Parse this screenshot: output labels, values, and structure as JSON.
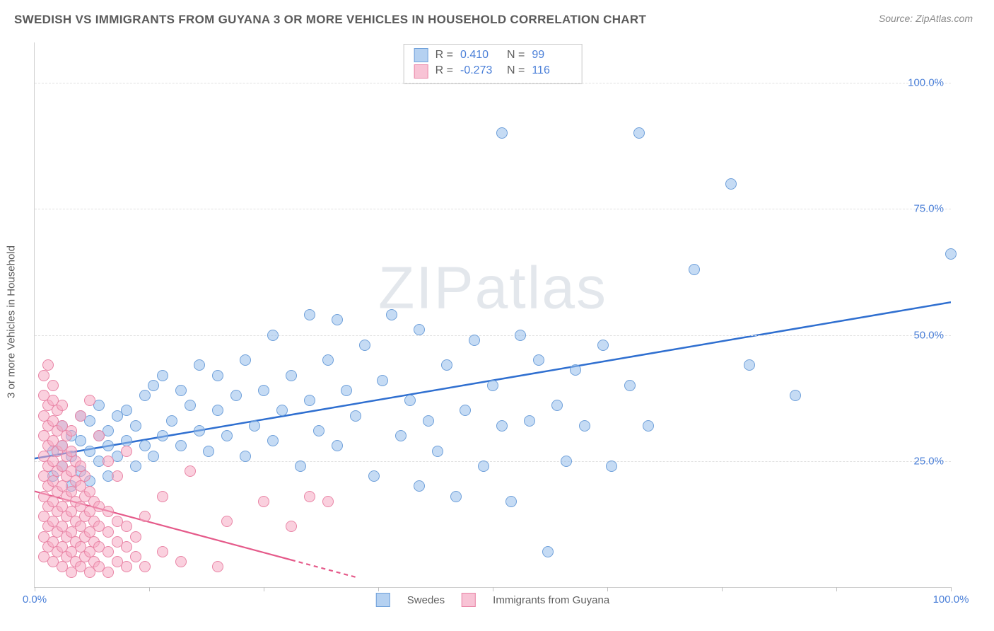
{
  "title": "SWEDISH VS IMMIGRANTS FROM GUYANA 3 OR MORE VEHICLES IN HOUSEHOLD CORRELATION CHART",
  "source": "Source: ZipAtlas.com",
  "y_axis_label": "3 or more Vehicles in Household",
  "watermark": "ZIPatlas",
  "chart": {
    "type": "scatter",
    "xlim": [
      0,
      100
    ],
    "ylim": [
      0,
      108
    ],
    "x_ticks": [
      0,
      12.5,
      25,
      37.5,
      50,
      62.5,
      75,
      87.5,
      100
    ],
    "x_tick_labels": {
      "0": "0.0%",
      "100": "100.0%"
    },
    "y_ticks": [
      25,
      50,
      75,
      100
    ],
    "y_tick_labels": {
      "25": "25.0%",
      "50": "50.0%",
      "75": "75.0%",
      "100": "100.0%"
    },
    "grid_color": "#e0e0e0",
    "background_color": "#ffffff",
    "point_radius": 8,
    "series": [
      {
        "name": "Swedes",
        "legend_label": "Swedes",
        "fill": "rgba(150,190,235,0.55)",
        "stroke": "#6fa0da",
        "R": "0.410",
        "N": "99",
        "trend": {
          "x1": 0,
          "y1": 25.5,
          "x2": 100,
          "y2": 56.5,
          "color": "#2f6fd0",
          "width": 2.5
        },
        "points": [
          [
            2,
            22
          ],
          [
            2,
            27
          ],
          [
            3,
            24
          ],
          [
            3,
            28
          ],
          [
            3,
            32
          ],
          [
            4,
            20
          ],
          [
            4,
            26
          ],
          [
            4,
            30
          ],
          [
            5,
            23
          ],
          [
            5,
            29
          ],
          [
            5,
            34
          ],
          [
            6,
            21
          ],
          [
            6,
            27
          ],
          [
            6,
            33
          ],
          [
            7,
            25
          ],
          [
            7,
            30
          ],
          [
            7,
            36
          ],
          [
            8,
            22
          ],
          [
            8,
            28
          ],
          [
            8,
            31
          ],
          [
            9,
            26
          ],
          [
            9,
            34
          ],
          [
            10,
            29
          ],
          [
            10,
            35
          ],
          [
            11,
            24
          ],
          [
            11,
            32
          ],
          [
            12,
            28
          ],
          [
            12,
            38
          ],
          [
            13,
            26
          ],
          [
            13,
            40
          ],
          [
            14,
            30
          ],
          [
            14,
            42
          ],
          [
            15,
            33
          ],
          [
            16,
            28
          ],
          [
            16,
            39
          ],
          [
            17,
            36
          ],
          [
            18,
            31
          ],
          [
            18,
            44
          ],
          [
            19,
            27
          ],
          [
            20,
            35
          ],
          [
            20,
            42
          ],
          [
            21,
            30
          ],
          [
            22,
            38
          ],
          [
            23,
            26
          ],
          [
            23,
            45
          ],
          [
            24,
            32
          ],
          [
            25,
            39
          ],
          [
            26,
            29
          ],
          [
            26,
            50
          ],
          [
            27,
            35
          ],
          [
            28,
            42
          ],
          [
            29,
            24
          ],
          [
            30,
            37
          ],
          [
            30,
            54
          ],
          [
            31,
            31
          ],
          [
            32,
            45
          ],
          [
            33,
            28
          ],
          [
            33,
            53
          ],
          [
            34,
            39
          ],
          [
            35,
            34
          ],
          [
            36,
            48
          ],
          [
            37,
            22
          ],
          [
            38,
            41
          ],
          [
            39,
            54
          ],
          [
            40,
            30
          ],
          [
            41,
            37
          ],
          [
            42,
            20
          ],
          [
            42,
            51
          ],
          [
            43,
            33
          ],
          [
            44,
            27
          ],
          [
            45,
            44
          ],
          [
            46,
            18
          ],
          [
            47,
            35
          ],
          [
            48,
            49
          ],
          [
            49,
            24
          ],
          [
            50,
            40
          ],
          [
            51,
            32
          ],
          [
            51,
            90
          ],
          [
            52,
            17
          ],
          [
            53,
            50
          ],
          [
            54,
            33
          ],
          [
            55,
            45
          ],
          [
            56,
            7
          ],
          [
            57,
            36
          ],
          [
            58,
            25
          ],
          [
            59,
            43
          ],
          [
            60,
            32
          ],
          [
            62,
            48
          ],
          [
            63,
            24
          ],
          [
            65,
            40
          ],
          [
            66,
            90
          ],
          [
            67,
            32
          ],
          [
            72,
            63
          ],
          [
            76,
            80
          ],
          [
            78,
            44
          ],
          [
            83,
            38
          ],
          [
            100,
            66
          ]
        ]
      },
      {
        "name": "Immigrants from Guyana",
        "legend_label": "Immigrants from Guyana",
        "fill": "rgba(245,170,195,0.55)",
        "stroke": "#e985a6",
        "R": "-0.273",
        "N": "116",
        "trend": {
          "x1": 0,
          "y1": 19,
          "x2": 35,
          "y2": 2,
          "color": "#e55a8a",
          "width": 2.2,
          "dash_after": 28
        },
        "points": [
          [
            1,
            6
          ],
          [
            1,
            10
          ],
          [
            1,
            14
          ],
          [
            1,
            18
          ],
          [
            1,
            22
          ],
          [
            1,
            26
          ],
          [
            1,
            30
          ],
          [
            1,
            34
          ],
          [
            1,
            38
          ],
          [
            1,
            42
          ],
          [
            1.5,
            8
          ],
          [
            1.5,
            12
          ],
          [
            1.5,
            16
          ],
          [
            1.5,
            20
          ],
          [
            1.5,
            24
          ],
          [
            1.5,
            28
          ],
          [
            1.5,
            32
          ],
          [
            1.5,
            36
          ],
          [
            1.5,
            44
          ],
          [
            2,
            5
          ],
          [
            2,
            9
          ],
          [
            2,
            13
          ],
          [
            2,
            17
          ],
          [
            2,
            21
          ],
          [
            2,
            25
          ],
          [
            2,
            29
          ],
          [
            2,
            33
          ],
          [
            2,
            37
          ],
          [
            2,
            40
          ],
          [
            2.5,
            7
          ],
          [
            2.5,
            11
          ],
          [
            2.5,
            15
          ],
          [
            2.5,
            19
          ],
          [
            2.5,
            23
          ],
          [
            2.5,
            27
          ],
          [
            2.5,
            31
          ],
          [
            2.5,
            35
          ],
          [
            3,
            4
          ],
          [
            3,
            8
          ],
          [
            3,
            12
          ],
          [
            3,
            16
          ],
          [
            3,
            20
          ],
          [
            3,
            24
          ],
          [
            3,
            28
          ],
          [
            3,
            32
          ],
          [
            3,
            36
          ],
          [
            3.5,
            6
          ],
          [
            3.5,
            10
          ],
          [
            3.5,
            14
          ],
          [
            3.5,
            18
          ],
          [
            3.5,
            22
          ],
          [
            3.5,
            26
          ],
          [
            3.5,
            30
          ],
          [
            4,
            3
          ],
          [
            4,
            7
          ],
          [
            4,
            11
          ],
          [
            4,
            15
          ],
          [
            4,
            19
          ],
          [
            4,
            23
          ],
          [
            4,
            27
          ],
          [
            4,
            31
          ],
          [
            4.5,
            5
          ],
          [
            4.5,
            9
          ],
          [
            4.5,
            13
          ],
          [
            4.5,
            17
          ],
          [
            4.5,
            21
          ],
          [
            4.5,
            25
          ],
          [
            5,
            4
          ],
          [
            5,
            8
          ],
          [
            5,
            12
          ],
          [
            5,
            16
          ],
          [
            5,
            20
          ],
          [
            5,
            24
          ],
          [
            5,
            34
          ],
          [
            5.5,
            6
          ],
          [
            5.5,
            10
          ],
          [
            5.5,
            14
          ],
          [
            5.5,
            18
          ],
          [
            5.5,
            22
          ],
          [
            6,
            3
          ],
          [
            6,
            7
          ],
          [
            6,
            11
          ],
          [
            6,
            15
          ],
          [
            6,
            19
          ],
          [
            6,
            37
          ],
          [
            6.5,
            5
          ],
          [
            6.5,
            9
          ],
          [
            6.5,
            13
          ],
          [
            6.5,
            17
          ],
          [
            7,
            4
          ],
          [
            7,
            8
          ],
          [
            7,
            12
          ],
          [
            7,
            16
          ],
          [
            7,
            30
          ],
          [
            8,
            3
          ],
          [
            8,
            7
          ],
          [
            8,
            11
          ],
          [
            8,
            15
          ],
          [
            8,
            25
          ],
          [
            9,
            5
          ],
          [
            9,
            9
          ],
          [
            9,
            13
          ],
          [
            9,
            22
          ],
          [
            10,
            4
          ],
          [
            10,
            8
          ],
          [
            10,
            12
          ],
          [
            10,
            27
          ],
          [
            11,
            6
          ],
          [
            11,
            10
          ],
          [
            12,
            4
          ],
          [
            12,
            14
          ],
          [
            14,
            7
          ],
          [
            14,
            18
          ],
          [
            16,
            5
          ],
          [
            17,
            23
          ],
          [
            20,
            4
          ],
          [
            21,
            13
          ],
          [
            25,
            17
          ],
          [
            28,
            12
          ],
          [
            30,
            18
          ],
          [
            32,
            17
          ]
        ]
      }
    ]
  },
  "stats_box": {
    "rows": [
      {
        "swatch_fill": "rgba(150,190,235,0.7)",
        "swatch_stroke": "#6fa0da",
        "R": "0.410",
        "N": "99"
      },
      {
        "swatch_fill": "rgba(245,170,195,0.7)",
        "swatch_stroke": "#e985a6",
        "R": "-0.273",
        "N": "116"
      }
    ],
    "labels": {
      "R": "R =",
      "N": "N ="
    }
  },
  "bottom_legend": [
    {
      "swatch_fill": "rgba(150,190,235,0.7)",
      "swatch_stroke": "#6fa0da",
      "label": "Swedes"
    },
    {
      "swatch_fill": "rgba(245,170,195,0.7)",
      "swatch_stroke": "#e985a6",
      "label": "Immigrants from Guyana"
    }
  ]
}
